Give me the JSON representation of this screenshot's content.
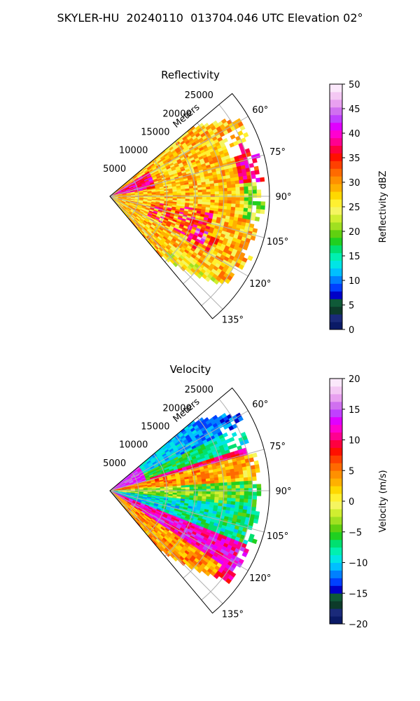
{
  "figure": {
    "title": "SKYLER-HU  20240110  013704.046 UTC Elevation 02°"
  },
  "chart_data": [
    {
      "type": "heatmap",
      "subtype": "polar-sector (radar PPI)",
      "title": "Reflectivity",
      "range_label": "Meters",
      "range_ticks": [
        5000,
        10000,
        15000,
        20000,
        25000
      ],
      "range_tick_labels": [
        "5000",
        "10000",
        "15000",
        "20000",
        "25000"
      ],
      "range_max": 28000,
      "azimuth_range": [
        50,
        140
      ],
      "azimuth_ticks": [
        "60°",
        "75°",
        "90°",
        "105°",
        "120°",
        "135°"
      ],
      "grid": true,
      "colorbar": {
        "label": "Reflectivity dBZ",
        "min": 0,
        "max": 50,
        "ticks": [
          "0",
          "5",
          "10",
          "15",
          "20",
          "25",
          "30",
          "35",
          "40",
          "45",
          "50"
        ],
        "colors": [
          "#0a1a66",
          "#1a2a7a",
          "#0d3b2a",
          "#0f5a38",
          "#0000c8",
          "#0040ff",
          "#0080ff",
          "#00bfff",
          "#00e5e5",
          "#00f0b0",
          "#00e070",
          "#20d020",
          "#60d010",
          "#a0e020",
          "#d0ee30",
          "#f5f560",
          "#fff030",
          "#ffd800",
          "#ffb000",
          "#ff9000",
          "#ff6a00",
          "#ff4000",
          "#ff1000",
          "#ff0040",
          "#ff0090",
          "#ff00d0",
          "#e000ff",
          "#c040ff",
          "#d070f0",
          "#e8a0f0",
          "#f4c8f4",
          "#fbe8fb"
        ]
      }
    },
    {
      "type": "heatmap",
      "subtype": "polar-sector (radar PPI)",
      "title": "Velocity",
      "range_label": "Meters",
      "range_ticks": [
        5000,
        10000,
        15000,
        20000,
        25000
      ],
      "range_tick_labels": [
        "5000",
        "10000",
        "15000",
        "20000",
        "25000"
      ],
      "range_max": 28000,
      "azimuth_range": [
        50,
        140
      ],
      "azimuth_ticks": [
        "60°",
        "75°",
        "90°",
        "105°",
        "120°",
        "135°"
      ],
      "grid": true,
      "colorbar": {
        "label": "Velocity (m/s)",
        "min": -20,
        "max": 20,
        "ticks": [
          "−20",
          "−15",
          "−10",
          "−5",
          "0",
          "5",
          "10",
          "15",
          "20"
        ],
        "colors": [
          "#0a1a66",
          "#1a2a7a",
          "#0d3b2a",
          "#0f5a38",
          "#0000c8",
          "#0040ff",
          "#0080ff",
          "#00bfff",
          "#00e5e5",
          "#00f0b0",
          "#00e070",
          "#20d020",
          "#60d010",
          "#a0e020",
          "#d0ee30",
          "#f5f560",
          "#fff030",
          "#ffd800",
          "#ffb000",
          "#ff9000",
          "#ff6a00",
          "#ff4000",
          "#ff1000",
          "#ff0040",
          "#ff0090",
          "#ff00d0",
          "#e000ff",
          "#c040ff",
          "#d070f0",
          "#e8a0f0",
          "#f4c8f4",
          "#fbe8fb"
        ]
      }
    }
  ]
}
